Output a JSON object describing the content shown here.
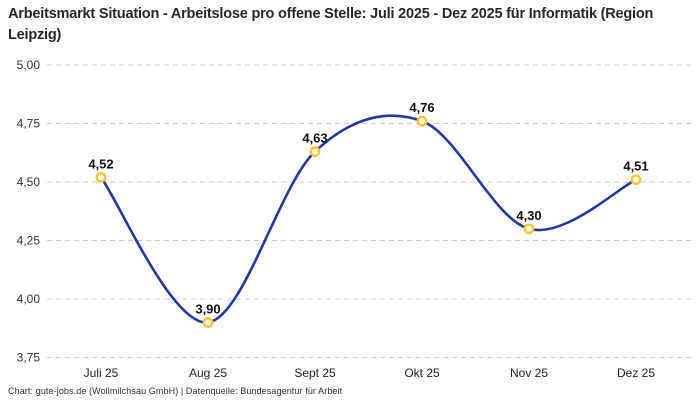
{
  "title": "Arbeitsmarkt Situation - Arbeitslose pro offene Stelle: Juli 2025 - Dez 2025 für Informatik (Region Leipzig)",
  "footer": "Chart: gute-jobs.de (Wollmilchsau GmbH) | Datenquelle: Bundesagentur für Arbeit",
  "colors": {
    "line": "#2139a0",
    "marker_ring": "#ffc42e",
    "marker_fill": "#ffffff",
    "grid": "#cccccc",
    "title_text": "#282828",
    "axis_text": "#333333",
    "point_label_text": "#111111"
  },
  "chart_data": {
    "type": "line",
    "title": "Arbeitsmarkt Situation - Arbeitslose pro offene Stelle: Juli 2025 - Dez 2025 für Informatik (Region Leipzig)",
    "categories": [
      "Juli 25",
      "Aug 25",
      "Sept 25",
      "Okt 25",
      "Nov 25",
      "Dez 25"
    ],
    "values": [
      4.52,
      3.9,
      4.63,
      4.76,
      4.3,
      4.51
    ],
    "point_labels": [
      "4,52",
      "3,90",
      "4,63",
      "4,76",
      "4,30",
      "4,51"
    ],
    "y_tick_labels": [
      "5,00",
      "4,75",
      "4,50",
      "4,25",
      "4,00",
      "3,75"
    ],
    "y_tick_values": [
      5.0,
      4.75,
      4.5,
      4.25,
      4.0,
      3.75
    ],
    "ylim": [
      3.75,
      5.0
    ],
    "xlabel": "",
    "ylabel": "",
    "grid": true,
    "grid_style": "dashed",
    "legend": "none",
    "curve": "smooth"
  }
}
